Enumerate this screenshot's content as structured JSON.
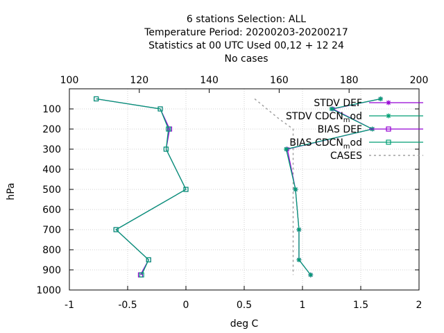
{
  "chart_data": {
    "type": "line",
    "title_lines": [
      "6 stations Selection: ALL",
      "Temperature  Period: 20200203-20200217",
      "Statistics at 00 UTC  Used  00,12  + 12 24",
      "No cases"
    ],
    "xlabel": "deg C",
    "ylabel": "hPa",
    "xlim": [
      -1,
      2
    ],
    "x_ticks": [
      "-1",
      "-0.5",
      "0",
      "0.5",
      "1",
      "1.5",
      "2"
    ],
    "x_tick_values": [
      -1,
      -0.5,
      0,
      0.5,
      1,
      1.5,
      2
    ],
    "x2lim": [
      100,
      200
    ],
    "x2_ticks": [
      "100",
      "120",
      "140",
      "160",
      "180",
      "200"
    ],
    "x2_tick_values": [
      100,
      120,
      140,
      160,
      180,
      200
    ],
    "ylim": [
      1000,
      0
    ],
    "y_ticks": [
      "100",
      "200",
      "300",
      "400",
      "500",
      "600",
      "700",
      "800",
      "900",
      "1000"
    ],
    "y_tick_values": [
      100,
      200,
      300,
      400,
      500,
      600,
      700,
      800,
      900,
      1000
    ],
    "grid": true,
    "legend_position": "top-right",
    "series": [
      {
        "name": "STDV DEF",
        "color": "#9400d3",
        "marker": "star",
        "axis": "x",
        "points": [
          [
            1.67,
            50
          ],
          [
            1.26,
            100
          ],
          [
            1.6,
            200
          ],
          [
            0.87,
            300
          ],
          [
            0.94,
            500
          ],
          [
            0.97,
            700
          ],
          [
            0.97,
            850
          ],
          [
            1.07,
            925
          ]
        ]
      },
      {
        "name": "STDV CDCN_mod",
        "color": "#009e73",
        "marker": "star",
        "axis": "x",
        "points": [
          [
            1.67,
            50
          ],
          [
            1.25,
            100
          ],
          [
            1.6,
            200
          ],
          [
            0.86,
            300
          ],
          [
            0.94,
            500
          ],
          [
            0.97,
            700
          ],
          [
            0.97,
            850
          ],
          [
            1.07,
            925
          ]
        ]
      },
      {
        "name": "BIAS DEF",
        "color": "#9400d3",
        "marker": "square",
        "axis": "x",
        "points": [
          [
            -0.77,
            50
          ],
          [
            -0.22,
            100
          ],
          [
            -0.14,
            200
          ],
          [
            -0.17,
            300
          ],
          [
            0.0,
            500
          ],
          [
            -0.6,
            700
          ],
          [
            -0.32,
            850
          ],
          [
            -0.39,
            925
          ]
        ]
      },
      {
        "name": "BIAS CDCN_mod",
        "color": "#009e73",
        "marker": "square",
        "axis": "x",
        "points": [
          [
            -0.77,
            50
          ],
          [
            -0.22,
            100
          ],
          [
            -0.15,
            200
          ],
          [
            -0.17,
            300
          ],
          [
            0.0,
            500
          ],
          [
            -0.6,
            700
          ],
          [
            -0.32,
            850
          ],
          [
            -0.38,
            925
          ]
        ]
      },
      {
        "name": "CASES",
        "color": "#a0a0a0",
        "marker": "none",
        "dashed": true,
        "axis": "x2",
        "points": [
          [
            153,
            50
          ],
          [
            160,
            150
          ],
          [
            164,
            200
          ],
          [
            164,
            925
          ]
        ]
      }
    ]
  }
}
